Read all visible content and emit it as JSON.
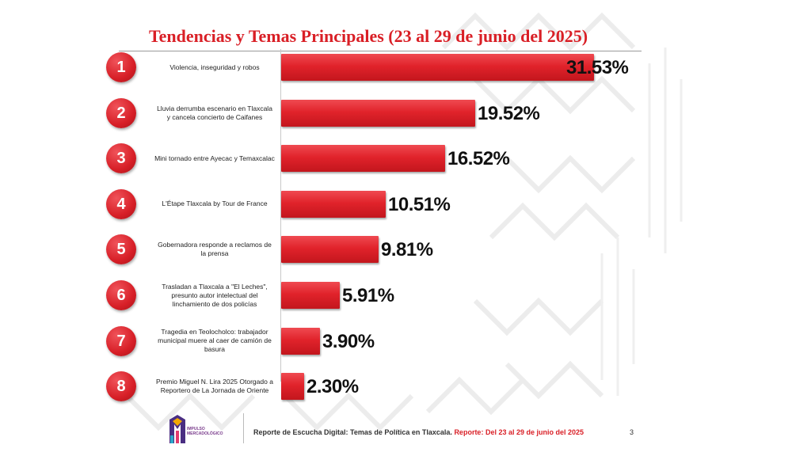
{
  "title": "Tendencias y Temas Principales (23 al 29 de junio del 2025)",
  "chart_data": {
    "type": "bar",
    "orientation": "horizontal",
    "title": "Tendencias y Temas Principales (23 al 29 de junio del 2025)",
    "xlim": [
      0,
      31.53
    ],
    "rows": [
      {
        "rank": "1",
        "label": "Violencia, inseguridad y robos",
        "value": 31.53,
        "value_label": "31.53%"
      },
      {
        "rank": "2",
        "label": "Lluvia derrumba escenario en Tlaxcala y cancela concierto de Caifanes",
        "value": 19.52,
        "value_label": "19.52%"
      },
      {
        "rank": "3",
        "label": "Mini tornado entre Ayecac y Temaxcalac",
        "value": 16.52,
        "value_label": "16.52%"
      },
      {
        "rank": "4",
        "label": "L'Étape Tlaxcala by Tour de France",
        "value": 10.51,
        "value_label": "10.51%"
      },
      {
        "rank": "5",
        "label": "Gobernadora responde a reclamos de la prensa",
        "value": 9.81,
        "value_label": "9.81%"
      },
      {
        "rank": "6",
        "label": "Trasladan a Tlaxcala a \"El Leches\", presunto autor intelectual del linchamiento de dos policías",
        "value": 5.91,
        "value_label": "5.91%"
      },
      {
        "rank": "7",
        "label": "Tragedia en Teolocholco: trabajador municipal muere al caer de camión de basura",
        "value": 3.9,
        "value_label": "3.90%"
      },
      {
        "rank": "8",
        "label": "Premio Miguel N. Lira 2025 Otorgado a Reportero de La Jornada de Oriente",
        "value": 2.3,
        "value_label": "2.30%"
      }
    ]
  },
  "footer": {
    "logo_line1": "IMPULSO",
    "logo_line2": "MERCADOLÓGICO",
    "report_text": "Reporte de Escucha Digital: Temas de Política en Tlaxcala.",
    "report_dates": "Reporte: Del 23 al 29 de junio del 2025",
    "page_number": "3"
  },
  "colors": {
    "accent_red": "#d91f26",
    "bar_red": "#e1232b"
  }
}
